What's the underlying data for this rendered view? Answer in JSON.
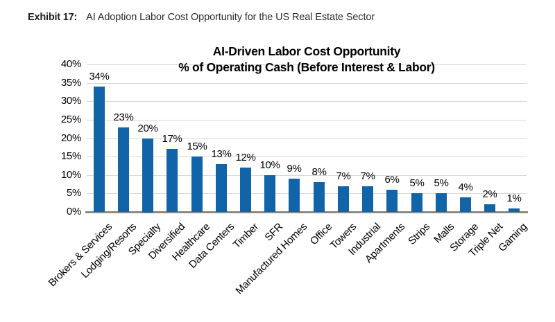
{
  "header": {
    "exhibit_label": "Exhibit 17:",
    "title": "AI Adoption Labor Cost Opportunity for the US Real Estate Sector"
  },
  "chart_data": {
    "type": "bar",
    "title": "AI-Driven Labor Cost Opportunity",
    "subtitle": "% of Operating Cash (Before Interest & Labor)",
    "categories": [
      "Brokers & Services",
      "Lodging/Resorts",
      "Specialty",
      "Diversified",
      "Healthcare",
      "Data Centers",
      "Timber",
      "SFR",
      "Manufactured Homes",
      "Office",
      "Towers",
      "Industrial",
      "Apartments",
      "Strips",
      "Malls",
      "Storage",
      "Triple Net",
      "Gaming"
    ],
    "values": [
      34,
      23,
      20,
      17,
      15,
      13,
      12,
      10,
      9,
      8,
      7,
      7,
      6,
      5,
      5,
      4,
      2,
      1
    ],
    "data_labels": [
      "34%",
      "23%",
      "20%",
      "17%",
      "15%",
      "13%",
      "12%",
      "10%",
      "9%",
      "8%",
      "7%",
      "7%",
      "6%",
      "5%",
      "5%",
      "4%",
      "2%",
      "1%"
    ],
    "ylim": [
      0,
      40
    ],
    "ytick_values": [
      0,
      5,
      10,
      15,
      20,
      25,
      30,
      35,
      40
    ],
    "ytick_labels": [
      "0%",
      "5%",
      "10%",
      "15%",
      "20%",
      "25%",
      "30%",
      "35%",
      "40%"
    ],
    "grid": true,
    "legend": "none",
    "xlabel": "",
    "ylabel": "",
    "colors": {
      "bar": "#1264A8",
      "gridline": "#D8D8D8",
      "baseline": "#8A8A8A",
      "text": "#000000"
    }
  }
}
